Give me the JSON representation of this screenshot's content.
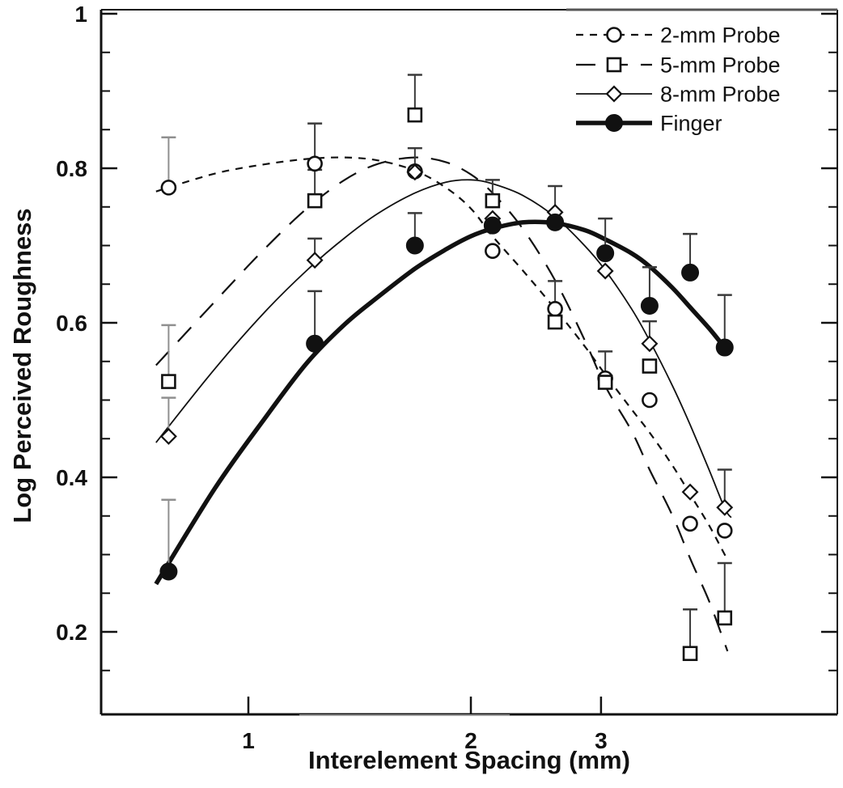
{
  "figure": {
    "x_axis_title": "Interelement Spacing (mm)",
    "y_axis_title": "Log Perceived Roughness"
  },
  "legend": {
    "position": "top-right",
    "items": [
      {
        "label": "2-mm Probe",
        "series": "2-mm Probe"
      },
      {
        "label": "5-mm Probe",
        "series": "5-mm Probe"
      },
      {
        "label": "8-mm Probe",
        "series": "8-mm Probe"
      },
      {
        "label": "Finger",
        "series": "Finger"
      }
    ]
  },
  "chart_data": {
    "type": "scatter",
    "title": "",
    "xlabel": "Interelement Spacing (mm)",
    "ylabel": "Log Perceived Roughness",
    "x_scale": "log",
    "y_scale": "linear",
    "x_tick_labels": [
      1,
      2,
      3
    ],
    "y_tick_labels": [
      0.2,
      0.4,
      0.6,
      0.8,
      1
    ],
    "y_minor_tick_step": 0.05,
    "x_range": [
      0.63,
      6.27
    ],
    "y_range": [
      0.093,
      1.005
    ],
    "grid": false,
    "legend_position": "top-right",
    "error_bars": "upper one-sided",
    "x": [
      0.78,
      1.23,
      1.68,
      2.14,
      2.6,
      3.04,
      3.49,
      3.96,
      4.41
    ],
    "series": [
      {
        "name": "2-mm Probe",
        "marker": "open-circle",
        "line_style": "short-dash",
        "line_width": 2.2,
        "values": [
          0.775,
          0.806,
          0.796,
          0.693,
          0.618,
          0.528,
          0.5,
          0.34,
          0.331
        ],
        "err_up": [
          0.065,
          0.052,
          0.03,
          0,
          0.036,
          0,
          0,
          0,
          0
        ],
        "fit": {
          "x": [
            0.75,
            0.9,
            1.05,
            1.2,
            1.35,
            1.5,
            1.68,
            1.85,
            2.0,
            2.14,
            2.35,
            2.6,
            2.85,
            3.04,
            3.3,
            3.49,
            3.75,
            3.96,
            4.2,
            4.41,
            4.45
          ],
          "v": [
            0.77,
            0.793,
            0.805,
            0.812,
            0.814,
            0.81,
            0.797,
            0.775,
            0.748,
            0.712,
            0.668,
            0.618,
            0.57,
            0.533,
            0.488,
            0.458,
            0.415,
            0.378,
            0.338,
            0.3,
            0.293
          ]
        }
      },
      {
        "name": "5-mm Probe",
        "marker": "open-square",
        "line_style": "long-dash",
        "line_width": 2.2,
        "values": [
          0.524,
          0.758,
          0.869,
          0.758,
          0.601,
          0.523,
          0.544,
          0.172,
          0.218
        ],
        "err_up": [
          0.073,
          0.04,
          0.052,
          0.027,
          0,
          0.04,
          0,
          0.057,
          0.071
        ],
        "fit": {
          "x": [
            0.75,
            0.9,
            1.05,
            1.2,
            1.35,
            1.5,
            1.68,
            1.85,
            2.0,
            2.14,
            2.35,
            2.6,
            2.85,
            3.04,
            3.3,
            3.49,
            3.75,
            3.96,
            4.2,
            4.41,
            4.45
          ],
          "v": [
            0.545,
            0.627,
            0.695,
            0.748,
            0.785,
            0.806,
            0.814,
            0.808,
            0.792,
            0.768,
            0.722,
            0.655,
            0.578,
            0.518,
            0.46,
            0.41,
            0.35,
            0.295,
            0.24,
            0.185,
            0.175
          ]
        }
      },
      {
        "name": "8-mm Probe",
        "marker": "open-diamond",
        "line_style": "solid-thin",
        "line_width": 1.8,
        "values": [
          0.453,
          0.681,
          0.795,
          0.735,
          0.743,
          0.667,
          0.573,
          0.381,
          0.361
        ],
        "err_up": [
          0.05,
          0.028,
          0,
          0,
          0.034,
          0,
          0.029,
          0,
          0.049
        ],
        "fit": {
          "x": [
            0.75,
            0.9,
            1.05,
            1.2,
            1.35,
            1.5,
            1.68,
            1.85,
            2.0,
            2.14,
            2.35,
            2.6,
            2.85,
            3.04,
            3.3,
            3.49,
            3.75,
            3.96,
            4.2,
            4.41,
            4.5
          ],
          "v": [
            0.445,
            0.54,
            0.613,
            0.668,
            0.71,
            0.742,
            0.768,
            0.782,
            0.785,
            0.78,
            0.765,
            0.737,
            0.7,
            0.668,
            0.618,
            0.577,
            0.518,
            0.468,
            0.41,
            0.36,
            0.348
          ]
        }
      },
      {
        "name": "Finger",
        "marker": "filled-circle",
        "line_style": "solid-thick",
        "line_width": 5.5,
        "values": [
          0.278,
          0.573,
          0.7,
          0.726,
          0.73,
          0.69,
          0.622,
          0.665,
          0.568
        ],
        "err_up": [
          0.093,
          0.068,
          0.042,
          0,
          0,
          0.045,
          0.05,
          0.05,
          0.068
        ],
        "fit": {
          "x": [
            0.75,
            0.9,
            1.05,
            1.2,
            1.35,
            1.5,
            1.68,
            1.85,
            2.0,
            2.14,
            2.35,
            2.6,
            2.85,
            3.04,
            3.3,
            3.49,
            3.75,
            3.96,
            4.2,
            4.41
          ],
          "v": [
            0.262,
            0.385,
            0.475,
            0.548,
            0.598,
            0.634,
            0.67,
            0.695,
            0.712,
            0.722,
            0.73,
            0.729,
            0.72,
            0.708,
            0.69,
            0.673,
            0.645,
            0.62,
            0.593,
            0.568
          ]
        }
      }
    ],
    "ink_color": "#111111",
    "error_bar_color": "#3a3a3a",
    "error_bar_light_color": "#8f8f8f"
  }
}
